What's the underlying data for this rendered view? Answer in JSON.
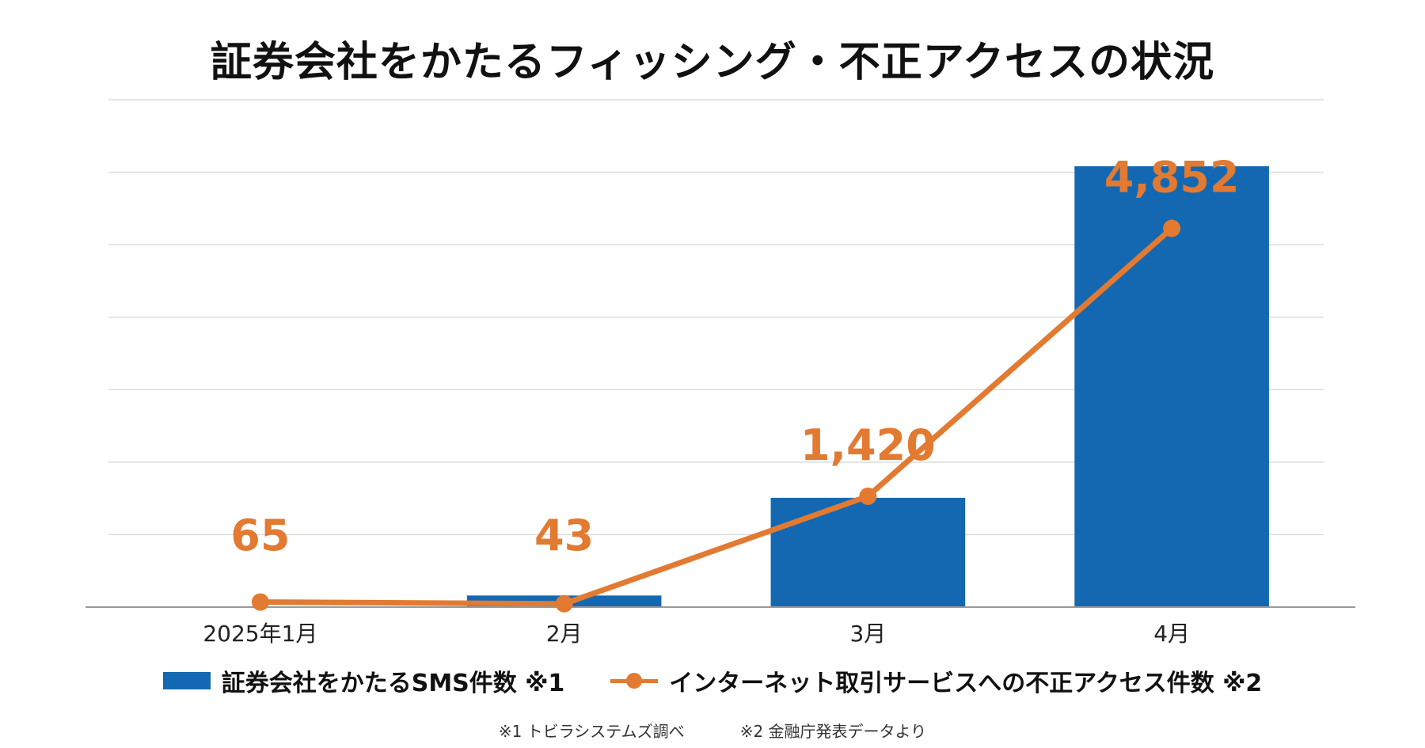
{
  "chart_data": {
    "type": "bar+line",
    "title": "証券会社をかたるフィッシング・不正アクセスの状況",
    "categories": [
      "2025年1月",
      "2月",
      "3月",
      "4月"
    ],
    "series": [
      {
        "name": "証券会社をかたるSMS件数 ※1",
        "type": "bar",
        "color": "#1468b1",
        "values": [
          0,
          80,
          754,
          3041
        ]
      },
      {
        "name": "インターネット取引サービスへの不正アクセス件数 ※2",
        "type": "line",
        "color": "#e27a31",
        "values": [
          65,
          43,
          1420,
          4852
        ],
        "labels": [
          "65",
          "43",
          "1,420",
          "4,852"
        ]
      }
    ],
    "bar_ylim": [
      0,
      3500
    ],
    "line_ylim": [
      0,
      6500
    ],
    "grid": true,
    "legend_position": "bottom"
  },
  "footnotes": [
    "※1 トビラシステムズ調べ",
    "※2 金融庁発表データより"
  ]
}
